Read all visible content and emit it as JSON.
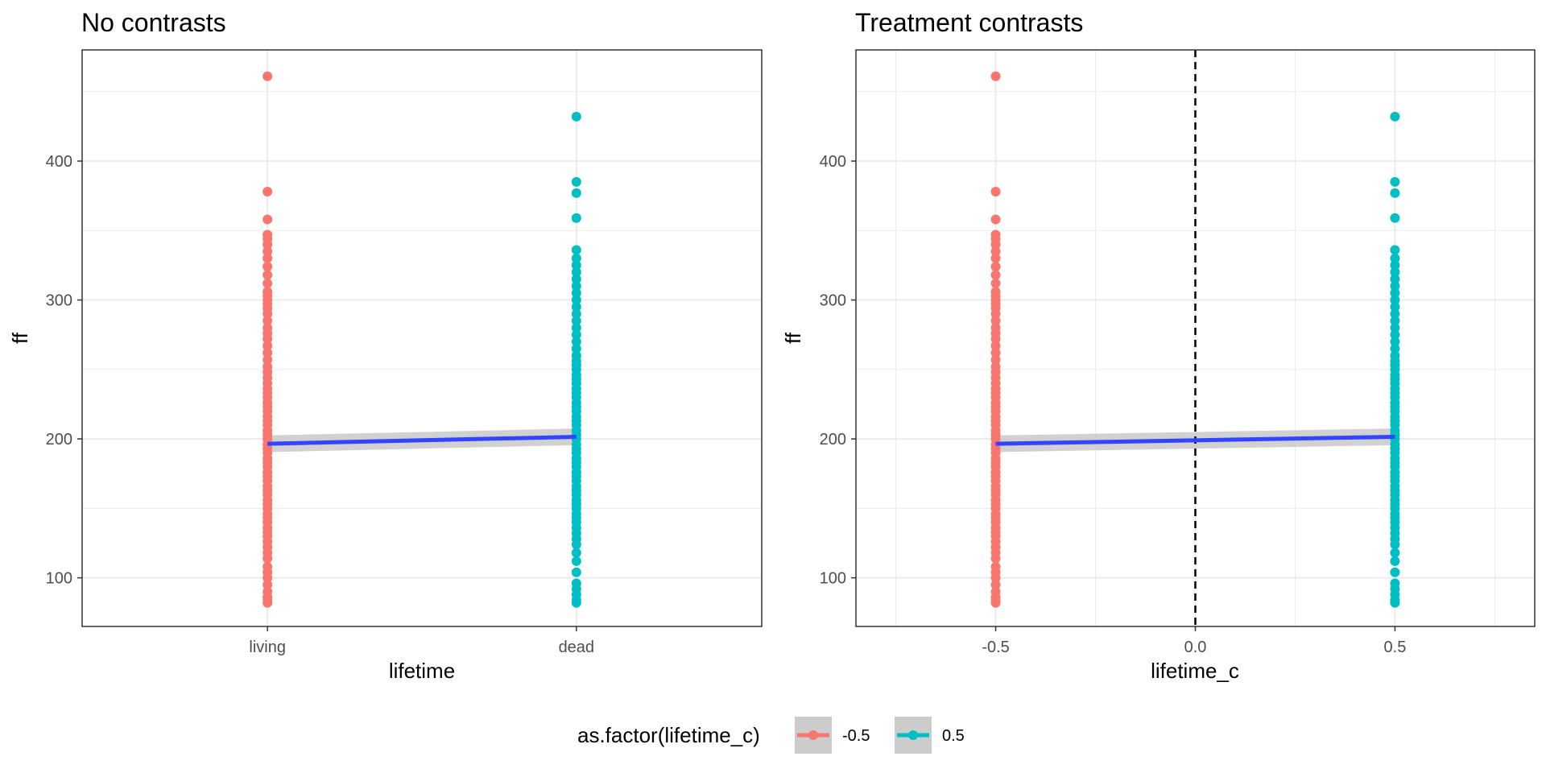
{
  "chart_data": [
    {
      "type": "scatter",
      "title": "No contrasts",
      "xlabel": "lifetime",
      "ylabel": "ff",
      "x_scale": "discrete",
      "categories": [
        "living",
        "dead"
      ],
      "ylim": [
        65,
        480
      ],
      "y_ticks": [
        100,
        200,
        300,
        400
      ],
      "grid": true,
      "series": [
        {
          "name": "-0.5",
          "category": "living",
          "y": [
            82,
            84,
            86,
            90,
            95,
            100,
            104,
            108,
            114,
            118,
            122,
            126,
            130,
            133,
            136,
            140,
            143,
            146,
            150,
            153,
            156,
            160,
            163,
            166,
            170,
            173,
            176,
            180,
            183,
            186,
            190,
            193,
            196,
            200,
            203,
            206,
            210,
            213,
            216,
            220,
            223,
            226,
            230,
            233,
            236,
            240,
            244,
            248,
            252,
            257,
            262,
            267,
            272,
            276,
            280,
            285,
            290,
            294,
            297,
            300,
            303,
            306,
            312,
            318,
            324,
            330,
            335,
            340,
            344,
            347,
            358,
            378,
            461
          ]
        },
        {
          "name": "0.5",
          "category": "dead",
          "y": [
            82,
            84,
            88,
            92,
            96,
            104,
            112,
            118,
            124,
            128,
            132,
            136,
            140,
            143,
            146,
            150,
            153,
            156,
            160,
            163,
            166,
            170,
            173,
            176,
            180,
            183,
            186,
            190,
            193,
            196,
            200,
            203,
            206,
            210,
            213,
            216,
            220,
            223,
            226,
            230,
            233,
            236,
            240,
            243,
            246,
            250,
            253,
            256,
            260,
            265,
            270,
            275,
            280,
            285,
            290,
            295,
            300,
            305,
            310,
            315,
            320,
            325,
            330,
            336,
            359,
            377,
            385,
            432
          ]
        }
      ],
      "fit_line": {
        "x": [
          "living",
          "dead"
        ],
        "y": [
          196.5,
          201.5
        ],
        "ci_low": [
          190.5,
          195.5
        ],
        "ci_high": [
          202.5,
          207.5
        ],
        "color": "#3344ff"
      }
    },
    {
      "type": "scatter",
      "title": "Treatment contrasts",
      "xlabel": "lifetime_c",
      "ylabel": "ff",
      "xlim": [
        -0.85,
        0.85
      ],
      "x_ticks": [
        "-0.5",
        "0.0",
        "0.5"
      ],
      "x_tick_values": [
        -0.5,
        0.0,
        0.5
      ],
      "ylim": [
        65,
        480
      ],
      "y_ticks": [
        100,
        200,
        300,
        400
      ],
      "grid": true,
      "reference_line": {
        "x": 0.0,
        "style": "dashed",
        "color": "#000000"
      },
      "series": [
        {
          "name": "-0.5",
          "x": -0.5,
          "y": [
            82,
            84,
            86,
            90,
            95,
            100,
            104,
            108,
            114,
            118,
            122,
            126,
            130,
            133,
            136,
            140,
            143,
            146,
            150,
            153,
            156,
            160,
            163,
            166,
            170,
            173,
            176,
            180,
            183,
            186,
            190,
            193,
            196,
            200,
            203,
            206,
            210,
            213,
            216,
            220,
            223,
            226,
            230,
            233,
            236,
            240,
            244,
            248,
            252,
            257,
            262,
            267,
            272,
            276,
            280,
            285,
            290,
            294,
            297,
            300,
            303,
            306,
            312,
            318,
            324,
            330,
            335,
            340,
            344,
            347,
            358,
            378,
            461
          ]
        },
        {
          "name": "0.5",
          "x": 0.5,
          "y": [
            82,
            84,
            88,
            92,
            96,
            104,
            112,
            118,
            124,
            128,
            132,
            136,
            140,
            143,
            146,
            150,
            153,
            156,
            160,
            163,
            166,
            170,
            173,
            176,
            180,
            183,
            186,
            190,
            193,
            196,
            200,
            203,
            206,
            210,
            213,
            216,
            220,
            223,
            226,
            230,
            233,
            236,
            240,
            243,
            246,
            250,
            253,
            256,
            260,
            265,
            270,
            275,
            280,
            285,
            290,
            295,
            300,
            305,
            310,
            315,
            320,
            325,
            330,
            336,
            359,
            377,
            385,
            432
          ]
        }
      ],
      "fit_line": {
        "x": [
          -0.5,
          0.5
        ],
        "y": [
          196.5,
          201.5
        ],
        "ci_low": [
          190.5,
          195.5
        ],
        "ci_high": [
          202.5,
          207.5
        ],
        "color": "#3344ff"
      }
    }
  ],
  "legend": {
    "title": "as.factor(lifetime_c)",
    "position": "bottom",
    "items": [
      {
        "label": "-0.5",
        "color": "#f8766d"
      },
      {
        "label": "0.5",
        "color": "#00bfc4"
      }
    ]
  },
  "colors": {
    "series_1": "#f8766d",
    "series_2": "#00bfc4",
    "fit_line": "#3344ff",
    "ci_band": "#cccccc",
    "grid": "#ebebeb",
    "panel_border": "#333333"
  }
}
